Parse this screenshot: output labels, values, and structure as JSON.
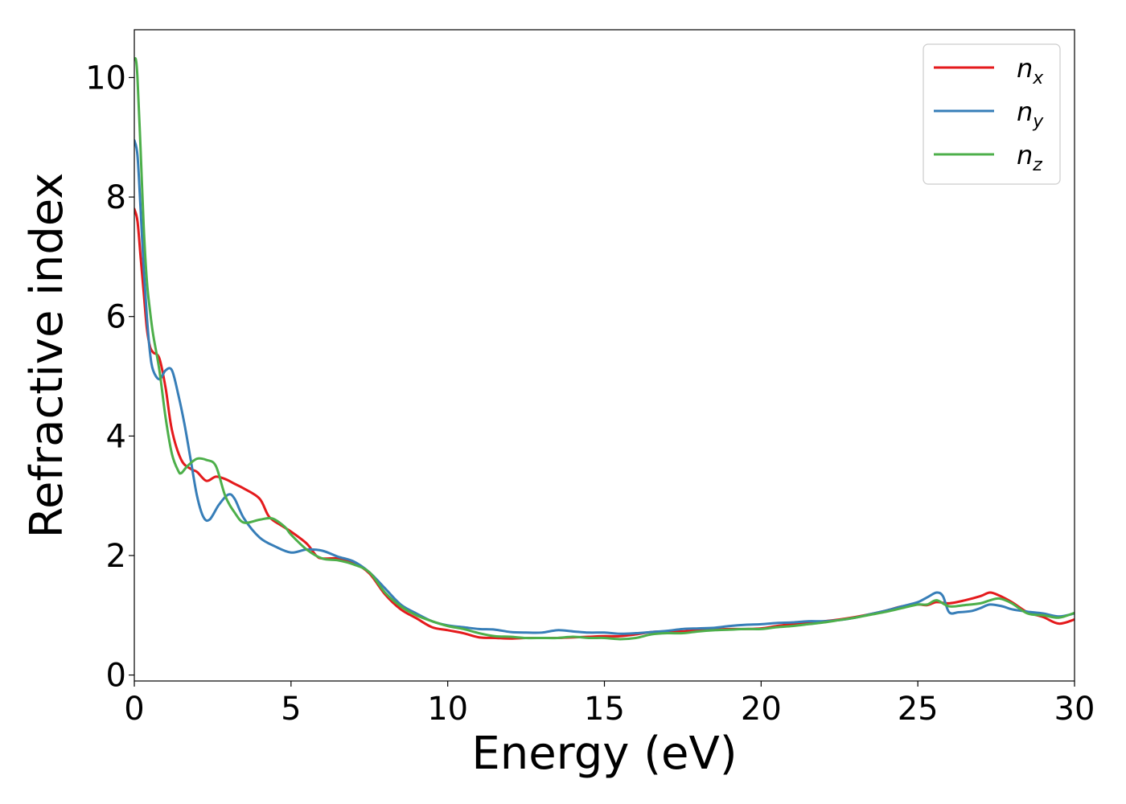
{
  "chart_data": {
    "type": "line",
    "title": "",
    "xlabel": "Energy (eV)",
    "ylabel": "Refractive index",
    "xlim": [
      0,
      30
    ],
    "ylim": [
      -0.1,
      10.8
    ],
    "xticks": [
      0,
      5,
      10,
      15,
      20,
      25,
      30
    ],
    "yticks": [
      0,
      2,
      4,
      6,
      8,
      10
    ],
    "grid": false,
    "legend_position": "top-right",
    "series": [
      {
        "name": "n",
        "subscript": "x",
        "color": "#e41a1c",
        "x": [
          0,
          0.1,
          0.2,
          0.3,
          0.4,
          0.5,
          0.6,
          0.8,
          1.0,
          1.2,
          1.5,
          1.8,
          2.0,
          2.3,
          2.6,
          2.9,
          3.2,
          3.5,
          4.0,
          4.3,
          4.7,
          5.0,
          5.5,
          5.8,
          6.0,
          6.5,
          7.0,
          7.5,
          8.0,
          8.5,
          9.0,
          9.5,
          10.0,
          10.5,
          11.0,
          11.5,
          12.0,
          12.5,
          13.0,
          13.5,
          14.0,
          14.5,
          15.0,
          15.5,
          16.0,
          16.5,
          17.0,
          17.5,
          18.0,
          18.5,
          19.0,
          19.5,
          20.0,
          20.5,
          21.0,
          21.5,
          22.0,
          22.5,
          23.0,
          23.5,
          24.0,
          24.5,
          25.0,
          25.3,
          25.6,
          26.0,
          26.5,
          27.0,
          27.3,
          27.6,
          28.0,
          28.5,
          29.0,
          29.5,
          30.0
        ],
        "y": [
          7.8,
          7.6,
          7.0,
          6.4,
          5.8,
          5.5,
          5.4,
          5.3,
          4.8,
          4.1,
          3.6,
          3.45,
          3.4,
          3.25,
          3.32,
          3.28,
          3.2,
          3.12,
          2.95,
          2.65,
          2.5,
          2.4,
          2.2,
          2.0,
          1.95,
          1.95,
          1.88,
          1.7,
          1.35,
          1.1,
          0.95,
          0.8,
          0.75,
          0.7,
          0.63,
          0.62,
          0.61,
          0.62,
          0.62,
          0.62,
          0.63,
          0.64,
          0.65,
          0.65,
          0.68,
          0.72,
          0.73,
          0.73,
          0.75,
          0.76,
          0.77,
          0.77,
          0.78,
          0.82,
          0.85,
          0.88,
          0.9,
          0.93,
          0.97,
          1.02,
          1.08,
          1.15,
          1.18,
          1.17,
          1.22,
          1.2,
          1.25,
          1.32,
          1.38,
          1.33,
          1.22,
          1.05,
          0.97,
          0.86,
          0.93
        ]
      },
      {
        "name": "n",
        "subscript": "y",
        "color": "#377eb8",
        "x": [
          0,
          0.1,
          0.2,
          0.3,
          0.4,
          0.5,
          0.6,
          0.8,
          1.0,
          1.2,
          1.4,
          1.6,
          1.8,
          2.0,
          2.2,
          2.4,
          2.7,
          3.0,
          3.2,
          3.5,
          4.0,
          4.5,
          5.0,
          5.5,
          6.0,
          6.5,
          7.0,
          7.5,
          8.0,
          8.5,
          9.0,
          9.5,
          10.0,
          10.5,
          11.0,
          11.5,
          12.0,
          12.5,
          13.0,
          13.5,
          14.0,
          14.5,
          15.0,
          15.5,
          16.0,
          16.5,
          17.0,
          17.5,
          18.0,
          18.5,
          19.0,
          19.5,
          20.0,
          20.5,
          21.0,
          21.5,
          22.0,
          22.5,
          23.0,
          23.5,
          24.0,
          24.5,
          25.0,
          25.3,
          25.6,
          25.8,
          26.0,
          26.3,
          26.7,
          27.0,
          27.3,
          27.7,
          28.0,
          28.5,
          29.0,
          29.5,
          30.0
        ],
        "y": [
          8.95,
          8.7,
          7.8,
          6.8,
          6.0,
          5.4,
          5.1,
          4.95,
          5.1,
          5.1,
          4.7,
          4.2,
          3.6,
          3.0,
          2.65,
          2.6,
          2.85,
          3.02,
          2.95,
          2.62,
          2.3,
          2.15,
          2.05,
          2.1,
          2.08,
          1.98,
          1.9,
          1.72,
          1.45,
          1.18,
          1.03,
          0.9,
          0.83,
          0.8,
          0.77,
          0.76,
          0.72,
          0.71,
          0.71,
          0.75,
          0.73,
          0.71,
          0.71,
          0.69,
          0.7,
          0.72,
          0.74,
          0.77,
          0.78,
          0.79,
          0.82,
          0.84,
          0.85,
          0.87,
          0.88,
          0.9,
          0.9,
          0.92,
          0.96,
          1.02,
          1.08,
          1.15,
          1.22,
          1.3,
          1.38,
          1.32,
          1.05,
          1.05,
          1.07,
          1.12,
          1.18,
          1.15,
          1.1,
          1.06,
          1.03,
          0.98,
          1.03
        ]
      },
      {
        "name": "n",
        "subscript": "z",
        "color": "#4daf4a",
        "x": [
          0,
          0.05,
          0.1,
          0.2,
          0.3,
          0.4,
          0.5,
          0.6,
          0.8,
          1.0,
          1.2,
          1.4,
          1.5,
          1.7,
          2.0,
          2.3,
          2.6,
          2.9,
          3.2,
          3.5,
          4.0,
          4.4,
          4.8,
          5.0,
          5.5,
          6.0,
          6.5,
          7.0,
          7.5,
          8.0,
          8.5,
          9.0,
          9.5,
          10.0,
          10.5,
          11.0,
          11.5,
          12.0,
          12.5,
          13.0,
          13.5,
          14.0,
          14.5,
          15.0,
          15.5,
          16.0,
          16.5,
          17.0,
          17.5,
          18.0,
          18.5,
          19.0,
          19.5,
          20.0,
          20.5,
          21.0,
          21.5,
          22.0,
          22.5,
          23.0,
          23.5,
          24.0,
          24.5,
          25.0,
          25.3,
          25.6,
          26.0,
          26.5,
          27.0,
          27.3,
          27.6,
          28.0,
          28.5,
          29.0,
          29.5,
          30.0
        ],
        "y": [
          10.3,
          10.3,
          10.0,
          8.8,
          7.5,
          6.6,
          6.1,
          5.7,
          5.1,
          4.3,
          3.7,
          3.42,
          3.38,
          3.5,
          3.62,
          3.6,
          3.5,
          3.0,
          2.72,
          2.55,
          2.6,
          2.62,
          2.48,
          2.35,
          2.1,
          1.95,
          1.92,
          1.85,
          1.72,
          1.38,
          1.15,
          1.0,
          0.9,
          0.82,
          0.77,
          0.7,
          0.65,
          0.64,
          0.62,
          0.62,
          0.62,
          0.64,
          0.62,
          0.62,
          0.6,
          0.62,
          0.68,
          0.7,
          0.7,
          0.73,
          0.75,
          0.76,
          0.77,
          0.77,
          0.8,
          0.82,
          0.85,
          0.88,
          0.92,
          0.96,
          1.01,
          1.06,
          1.12,
          1.18,
          1.18,
          1.25,
          1.15,
          1.17,
          1.2,
          1.25,
          1.28,
          1.2,
          1.03,
          1.0,
          0.96,
          1.04
        ]
      }
    ]
  }
}
